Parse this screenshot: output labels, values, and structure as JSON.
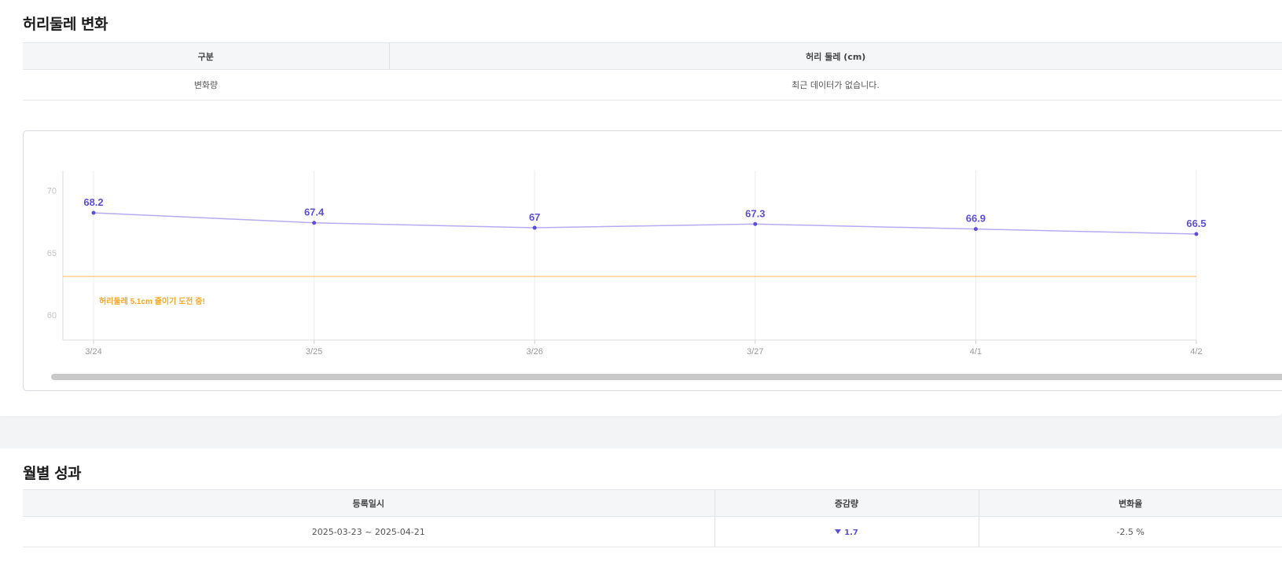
{
  "waist_section": {
    "title": "허리둘레 변화",
    "table": {
      "headers": [
        "구분",
        "허리 둘레 (cm)"
      ],
      "row": {
        "label": "변화량",
        "value": "최근 데이터가 없습니다."
      }
    },
    "goal_text": "허리둘레 5.1cm 줄이기 도전 중!"
  },
  "chart_data": {
    "type": "line",
    "categories": [
      "3/24",
      "3/25",
      "3/26",
      "3/27",
      "4/1",
      "4/2"
    ],
    "series": [
      {
        "values": [
          68.2,
          67.4,
          67,
          67.3,
          66.9,
          66.5
        ]
      }
    ],
    "value_labels": [
      "68.2",
      "67.4",
      "67",
      "67.3",
      "66.9",
      "66.5"
    ],
    "y_ticks": [
      "70",
      "65",
      "60"
    ],
    "ylim": [
      58,
      71.6
    ],
    "goal_line": 63.1,
    "grid": true,
    "colors": {
      "line": "#b6abf0",
      "point": "#5b4fd6",
      "label": "#5b4fd6",
      "goal": "#f7b955",
      "goal_text": "#f5a623"
    }
  },
  "monthly_section": {
    "title": "월별 성과",
    "table": {
      "headers": [
        "등록일시",
        "증감량",
        "변화율"
      ],
      "row": {
        "period": "2025-03-23 ~ 2025-04-21",
        "delta_icon": "down-triangle-icon",
        "delta": "1.7",
        "rate": "-2.5 %"
      }
    }
  }
}
